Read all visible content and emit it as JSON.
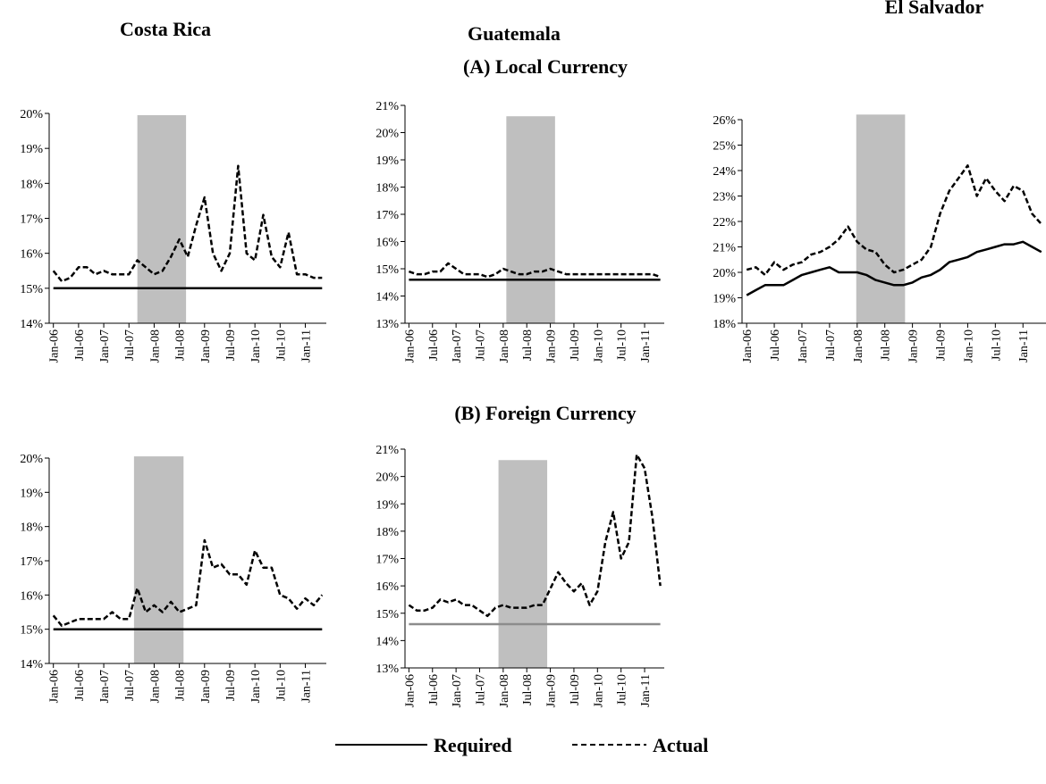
{
  "column_titles": [
    "Costa Rica",
    "Guatemala",
    "El Salvador"
  ],
  "panel_titles": [
    "(A) Local Currency",
    "(B) Foreign Currency"
  ],
  "chart_data": [
    {
      "type": "line",
      "categories": [
        "Jan-06",
        null,
        null,
        "Jul-06",
        null,
        null,
        "Jan-07",
        null,
        null,
        "Jul-07",
        null,
        null,
        "Jan-08",
        null,
        null,
        "Jul-08",
        null,
        null,
        "Jan-09",
        null,
        null,
        "Jul-09",
        null,
        null,
        "Jan-10",
        null,
        null,
        "Jul-10",
        null,
        null,
        "Jan-11",
        null,
        null
      ],
      "ylim": [
        14,
        20
      ],
      "yticks": [
        {
          "value": 14,
          "label": "14%"
        },
        {
          "value": 15,
          "label": "15%"
        },
        {
          "value": 16,
          "label": "16%"
        },
        {
          "value": 17,
          "label": "17%"
        },
        {
          "value": 18,
          "label": "18%"
        },
        {
          "value": 19,
          "label": "19%"
        },
        {
          "value": 20,
          "label": "20%"
        }
      ],
      "shade": {
        "from": 10.0,
        "to": 15.8,
        "top": 19.95,
        "color": "#bfbfbf"
      },
      "series": [
        {
          "name": "Required",
          "color": "#000000",
          "style": "solid",
          "values": [
            15,
            15,
            15,
            15,
            15,
            15,
            15,
            15,
            15,
            15,
            15,
            15,
            15,
            15,
            15,
            15,
            15,
            15,
            15,
            15,
            15,
            15,
            15,
            15,
            15,
            15,
            15,
            15,
            15,
            15,
            15,
            15,
            15
          ]
        },
        {
          "name": "Actual",
          "color": "#000000",
          "style": "dashed",
          "values": [
            15.5,
            15.2,
            15.3,
            15.6,
            15.6,
            15.4,
            15.5,
            15.4,
            15.4,
            15.4,
            15.8,
            15.6,
            15.4,
            15.5,
            15.9,
            16.4,
            15.9,
            16.8,
            17.6,
            16.0,
            15.5,
            16.0,
            18.5,
            16.0,
            15.8,
            17.1,
            15.9,
            15.6,
            16.6,
            15.4,
            15.4,
            15.3,
            15.3
          ]
        }
      ]
    },
    {
      "type": "line",
      "categories": [
        "Jan-06",
        null,
        null,
        "Jul-06",
        null,
        null,
        "Jan-07",
        null,
        null,
        "Jul-07",
        null,
        null,
        "Jan-08",
        null,
        null,
        "Jul-08",
        null,
        null,
        "Jan-09",
        null,
        null,
        "Jul-09",
        null,
        null,
        "Jan-10",
        null,
        null,
        "Jul-10",
        null,
        null,
        "Jan-11",
        null,
        null
      ],
      "ylim": [
        13,
        21
      ],
      "yticks": [
        {
          "value": 13,
          "label": "13%"
        },
        {
          "value": 14,
          "label": "14%"
        },
        {
          "value": 15,
          "label": "15%"
        },
        {
          "value": 16,
          "label": "16%"
        },
        {
          "value": 17,
          "label": "17%"
        },
        {
          "value": 18,
          "label": "18%"
        },
        {
          "value": 19,
          "label": "19%"
        },
        {
          "value": 20,
          "label": "20%"
        },
        {
          "value": 21,
          "label": "21%"
        }
      ],
      "shade": {
        "from": 12.4,
        "to": 18.6,
        "top": 20.6,
        "color": "#bfbfbf"
      },
      "series": [
        {
          "name": "Required",
          "color": "#000000",
          "style": "solid",
          "values": [
            14.6,
            14.6,
            14.6,
            14.6,
            14.6,
            14.6,
            14.6,
            14.6,
            14.6,
            14.6,
            14.6,
            14.6,
            14.6,
            14.6,
            14.6,
            14.6,
            14.6,
            14.6,
            14.6,
            14.6,
            14.6,
            14.6,
            14.6,
            14.6,
            14.6,
            14.6,
            14.6,
            14.6,
            14.6,
            14.6,
            14.6,
            14.6,
            14.6
          ]
        },
        {
          "name": "Actual",
          "color": "#000000",
          "style": "dashed",
          "values": [
            14.9,
            14.8,
            14.8,
            14.9,
            14.9,
            15.2,
            15.0,
            14.8,
            14.8,
            14.8,
            14.7,
            14.8,
            15.0,
            14.9,
            14.8,
            14.8,
            14.9,
            14.9,
            15.0,
            14.9,
            14.8,
            14.8,
            14.8,
            14.8,
            14.8,
            14.8,
            14.8,
            14.8,
            14.8,
            14.8,
            14.8,
            14.8,
            14.7
          ]
        }
      ]
    },
    {
      "type": "line",
      "categories": [
        "Jan-06",
        null,
        null,
        "Jul-06",
        null,
        null,
        "Jan-07",
        null,
        null,
        "Jul-07",
        null,
        null,
        "Jan-08",
        null,
        null,
        "Jul-08",
        null,
        null,
        "Jan-09",
        null,
        null,
        "Jul-09",
        null,
        null,
        "Jan-10",
        null,
        null,
        "Jul-10",
        null,
        null,
        "Jan-11",
        null,
        null
      ],
      "ylim": [
        18,
        26
      ],
      "yticks": [
        {
          "value": 18,
          "label": "18%"
        },
        {
          "value": 19,
          "label": "19%"
        },
        {
          "value": 20,
          "label": "20%"
        },
        {
          "value": 21,
          "label": "21%"
        },
        {
          "value": 22,
          "label": "22%"
        },
        {
          "value": 23,
          "label": "23%"
        },
        {
          "value": 24,
          "label": "24%"
        },
        {
          "value": 25,
          "label": "25%"
        },
        {
          "value": 26,
          "label": "26%"
        }
      ],
      "shade": {
        "from": 11.9,
        "to": 17.2,
        "top": 26.2,
        "color": "#bfbfbf"
      },
      "series": [
        {
          "name": "Required",
          "color": "#000000",
          "style": "solid",
          "values": [
            19.1,
            19.3,
            19.5,
            19.5,
            19.5,
            19.7,
            19.9,
            20.0,
            20.1,
            20.2,
            20.0,
            20.0,
            20.0,
            19.9,
            19.7,
            19.6,
            19.5,
            19.5,
            19.6,
            19.8,
            19.9,
            20.1,
            20.4,
            20.5,
            20.6,
            20.8,
            20.9,
            21.0,
            21.1,
            21.1,
            21.2,
            21.0,
            20.8
          ]
        },
        {
          "name": "Actual",
          "color": "#000000",
          "style": "dashed",
          "values": [
            20.1,
            20.2,
            19.9,
            20.4,
            20.1,
            20.3,
            20.4,
            20.7,
            20.8,
            21.0,
            21.3,
            21.8,
            21.2,
            20.9,
            20.8,
            20.3,
            20.0,
            20.1,
            20.3,
            20.5,
            21.0,
            22.3,
            23.2,
            23.7,
            24.2,
            23.0,
            23.7,
            23.2,
            22.8,
            23.4,
            23.2,
            22.3,
            21.9
          ]
        }
      ]
    },
    {
      "type": "line",
      "categories": [
        "Jan-06",
        null,
        null,
        "Jul-06",
        null,
        null,
        "Jan-07",
        null,
        null,
        "Jul-07",
        null,
        null,
        "Jan-08",
        null,
        null,
        "Jul-08",
        null,
        null,
        "Jan-09",
        null,
        null,
        "Jul-09",
        null,
        null,
        "Jan-10",
        null,
        null,
        "Jul-10",
        null,
        null,
        "Jan-11",
        null,
        null
      ],
      "ylim": [
        14,
        20
      ],
      "yticks": [
        {
          "value": 14,
          "label": "14%"
        },
        {
          "value": 15,
          "label": "15%"
        },
        {
          "value": 16,
          "label": "16%"
        },
        {
          "value": 17,
          "label": "17%"
        },
        {
          "value": 18,
          "label": "18%"
        },
        {
          "value": 19,
          "label": "19%"
        },
        {
          "value": 20,
          "label": "20%"
        }
      ],
      "shade": {
        "from": 9.6,
        "to": 15.5,
        "top": 20.05,
        "color": "#bfbfbf"
      },
      "series": [
        {
          "name": "Required",
          "color": "#000000",
          "style": "solid",
          "values": [
            15,
            15,
            15,
            15,
            15,
            15,
            15,
            15,
            15,
            15,
            15,
            15,
            15,
            15,
            15,
            15,
            15,
            15,
            15,
            15,
            15,
            15,
            15,
            15,
            15,
            15,
            15,
            15,
            15,
            15,
            15,
            15,
            15
          ]
        },
        {
          "name": "Actual",
          "color": "#000000",
          "style": "dashed",
          "values": [
            15.4,
            15.1,
            15.2,
            15.3,
            15.3,
            15.3,
            15.3,
            15.5,
            15.3,
            15.3,
            16.2,
            15.5,
            15.7,
            15.5,
            15.8,
            15.5,
            15.6,
            15.7,
            17.6,
            16.8,
            16.9,
            16.6,
            16.6,
            16.3,
            17.3,
            16.8,
            16.8,
            16.0,
            15.9,
            15.6,
            15.9,
            15.7,
            16.0
          ]
        }
      ]
    },
    {
      "type": "line",
      "categories": [
        "Jan-06",
        null,
        null,
        "Jul-06",
        null,
        null,
        "Jan-07",
        null,
        null,
        "Jul-07",
        null,
        null,
        "Jan-08",
        null,
        null,
        "Jul-08",
        null,
        null,
        "Jan-09",
        null,
        null,
        "Jul-09",
        null,
        null,
        "Jan-10",
        null,
        null,
        "Jul-10",
        null,
        null,
        "Jan-11",
        null,
        null
      ],
      "ylim": [
        13,
        21
      ],
      "yticks": [
        {
          "value": 13,
          "label": "13%"
        },
        {
          "value": 14,
          "label": "14%"
        },
        {
          "value": 15,
          "label": "15%"
        },
        {
          "value": 16,
          "label": "16%"
        },
        {
          "value": 17,
          "label": "17%"
        },
        {
          "value": 18,
          "label": "18%"
        },
        {
          "value": 19,
          "label": "19%"
        },
        {
          "value": 20,
          "label": "20%"
        },
        {
          "value": 21,
          "label": "21%"
        }
      ],
      "shade": {
        "from": 11.4,
        "to": 17.6,
        "top": 20.6,
        "color": "#bfbfbf"
      },
      "series": [
        {
          "name": "Required",
          "color": "#8c8c8c",
          "style": "solid",
          "values": [
            14.6,
            14.6,
            14.6,
            14.6,
            14.6,
            14.6,
            14.6,
            14.6,
            14.6,
            14.6,
            14.6,
            14.6,
            14.6,
            14.6,
            14.6,
            14.6,
            14.6,
            14.6,
            14.6,
            14.6,
            14.6,
            14.6,
            14.6,
            14.6,
            14.6,
            14.6,
            14.6,
            14.6,
            14.6,
            14.6,
            14.6,
            14.6,
            14.6
          ]
        },
        {
          "name": "Actual",
          "color": "#000000",
          "style": "dashed",
          "values": [
            15.3,
            15.1,
            15.1,
            15.2,
            15.5,
            15.4,
            15.5,
            15.3,
            15.3,
            15.1,
            14.9,
            15.2,
            15.3,
            15.2,
            15.2,
            15.2,
            15.3,
            15.3,
            15.9,
            16.5,
            16.1,
            15.8,
            16.1,
            15.3,
            15.8,
            17.6,
            18.7,
            17.0,
            17.6,
            20.8,
            20.3,
            18.5,
            16.0
          ]
        }
      ]
    }
  ]
}
